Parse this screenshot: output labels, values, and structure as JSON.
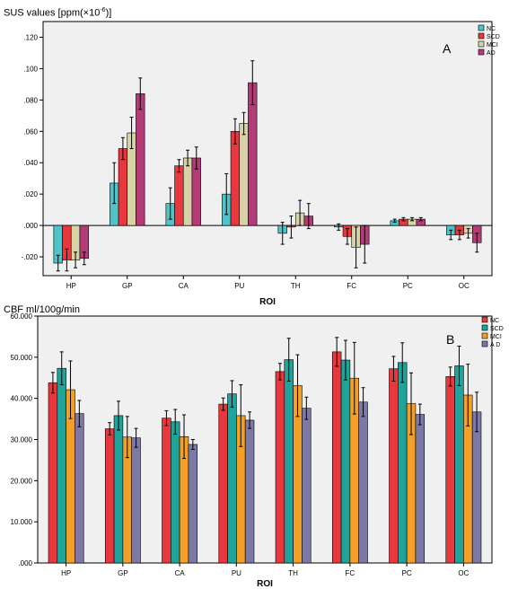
{
  "charts": [
    {
      "id": "A",
      "panel_letter": "A",
      "ylabel_prefix": "SUS values [ppm(",
      "ylabel_times": "×",
      "ylabel_base": "10",
      "ylabel_exp": "-6",
      "ylabel_suffix": ")]"
    },
    {
      "id": "B",
      "panel_letter": "B",
      "ylabel_full": "CBF ml/100g/min"
    }
  ],
  "chart_data": [
    {
      "type": "bar",
      "title": "",
      "panel": "A",
      "ylabel": "SUS values [ppm(×10⁻⁶)]",
      "xlabel": "ROI",
      "categories": [
        "HP",
        "GP",
        "CA",
        "PU",
        "TH",
        "FC",
        "PC",
        "OC"
      ],
      "ylim": [
        -0.032,
        0.13
      ],
      "yticks": [
        -0.02,
        0.0,
        0.02,
        0.04,
        0.06,
        0.08,
        0.1,
        0.12
      ],
      "ytick_labels": [
        "-.020",
        ".000",
        ".020",
        ".040",
        ".060",
        ".080",
        ".100",
        ".120"
      ],
      "legend_position": "top-right",
      "grid": false,
      "series": [
        {
          "name": "NC",
          "color": "#4fc3c8",
          "values": [
            -0.024,
            0.027,
            0.014,
            0.02,
            -0.005,
            -0.001,
            0.003,
            -0.006
          ],
          "err": [
            0.005,
            0.013,
            0.01,
            0.013,
            0.007,
            0.002,
            0.001,
            0.003
          ]
        },
        {
          "name": "SCD",
          "color": "#e8383d",
          "values": [
            -0.022,
            0.049,
            0.038,
            0.06,
            -0.001,
            -0.007,
            0.004,
            -0.006
          ],
          "err": [
            0.007,
            0.007,
            0.004,
            0.008,
            0.007,
            0.005,
            0.001,
            0.003
          ]
        },
        {
          "name": "MCI",
          "color": "#d8d3a6",
          "values": [
            -0.022,
            0.059,
            0.043,
            0.065,
            0.008,
            -0.014,
            0.004,
            -0.005
          ],
          "err": [
            0.005,
            0.01,
            0.005,
            0.007,
            0.008,
            0.013,
            0.001,
            0.003
          ]
        },
        {
          "name": "AD",
          "color": "#b23b78",
          "values": [
            -0.021,
            0.084,
            0.043,
            0.091,
            0.006,
            -0.012,
            0.004,
            -0.011
          ],
          "err": [
            0.004,
            0.01,
            0.007,
            0.014,
            0.008,
            0.012,
            0.001,
            0.006
          ]
        }
      ]
    },
    {
      "type": "bar",
      "title": "",
      "panel": "B",
      "ylabel": "CBF ml/100g/min",
      "xlabel": "ROI",
      "categories": [
        "HP",
        "GP",
        "CA",
        "PU",
        "TH",
        "FC",
        "PC",
        "OC"
      ],
      "ylim": [
        0,
        60
      ],
      "yticks": [
        0,
        10,
        20,
        30,
        40,
        50,
        60
      ],
      "ytick_labels": [
        ".000",
        "10.000",
        "20.000",
        "30.000",
        "40.000",
        "50.000",
        "60.000"
      ],
      "legend_position": "top-right",
      "grid": false,
      "series": [
        {
          "name": "NC",
          "color": "#e8383d",
          "values": [
            43.8,
            32.6,
            35.2,
            38.6,
            46.5,
            51.3,
            47.2,
            45.3
          ],
          "err": [
            2.5,
            1.5,
            1.8,
            1.5,
            2.0,
            3.5,
            3.0,
            2.3
          ]
        },
        {
          "name": "SCD",
          "color": "#1fa39b",
          "values": [
            47.3,
            35.8,
            34.3,
            41.1,
            49.4,
            49.3,
            48.7,
            47.9
          ],
          "err": [
            4.0,
            3.5,
            3.0,
            3.2,
            5.2,
            4.8,
            4.8,
            4.8
          ]
        },
        {
          "name": "MCI",
          "color": "#f4a028",
          "values": [
            42.1,
            30.6,
            30.7,
            35.8,
            43.1,
            44.9,
            38.7,
            40.8
          ],
          "err": [
            7.0,
            5.0,
            5.3,
            7.5,
            7.5,
            8.7,
            7.5,
            7.5
          ]
        },
        {
          "name": "A D",
          "color": "#7c79a6",
          "values": [
            36.3,
            30.4,
            28.8,
            34.7,
            37.6,
            39.1,
            36.1,
            36.7
          ],
          "err": [
            3.2,
            2.3,
            1.2,
            2.0,
            2.7,
            3.5,
            2.5,
            4.8
          ]
        }
      ]
    }
  ]
}
